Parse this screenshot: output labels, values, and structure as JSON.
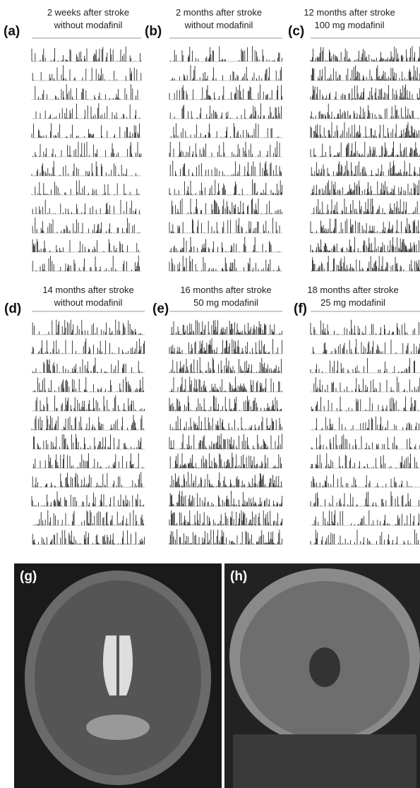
{
  "panels": [
    {
      "label": "(a)",
      "title": [
        "2 weeks after stroke",
        "without modafinil"
      ]
    },
    {
      "label": "(b)",
      "title": [
        "2 months after stroke",
        "without modafinil"
      ]
    },
    {
      "label": "(c)",
      "title": [
        "12 months after stroke",
        "100 mg modafinil"
      ]
    },
    {
      "label": "(d)",
      "title": [
        "14 months after stroke",
        "without modafinil"
      ]
    },
    {
      "label": "(e)",
      "title": [
        "16 months after stroke",
        "50 mg modafinil"
      ]
    },
    {
      "label": "(f)",
      "title": [
        "18 months after stroke",
        "25 mg modafinil"
      ]
    }
  ],
  "images": [
    {
      "label": "(g)"
    },
    {
      "label": "(h)"
    }
  ]
}
